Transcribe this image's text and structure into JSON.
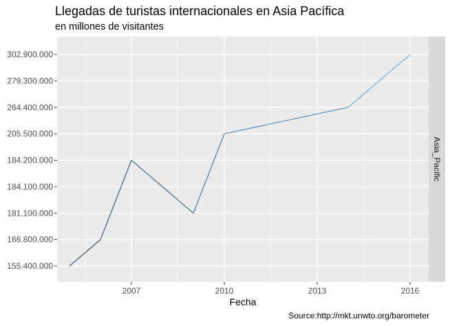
{
  "colors": {
    "panel_bg": "#ebebeb",
    "grid_major": "#ffffff",
    "strip_bg": "#d9d9d9",
    "line_start": "#132b43",
    "line_end": "#56b1f7",
    "axis_text": "#4d4d4d"
  },
  "chart_data": {
    "type": "line",
    "title": "Llegadas de turistas internacionales en Asia Pacífica",
    "subtitle": "en millones de visitantes",
    "caption": "Source:http://mkt.unwto.org/barometer",
    "xlabel": "Fecha",
    "ylabel": "",
    "facet_label": "Asia_Pacific",
    "x_ticks": [
      "2007",
      "2010",
      "2013",
      "2016"
    ],
    "x_tick_values": [
      2007,
      2010,
      2013,
      2016
    ],
    "xlim": [
      2004.6,
      2016.6
    ],
    "y_categories": [
      "155.400.000",
      "166.800.000",
      "181.100.000",
      "184.100.000",
      "184.200.000",
      "205.500.000",
      "264.400.000",
      "279.300.000",
      "302.900.000"
    ],
    "series": [
      {
        "x": [
          2005,
          2006,
          2007,
          2009,
          2010,
          2014,
          2016
        ],
        "y": [
          "155.400.000",
          "166.800.000",
          "184.200.000",
          "181.100.000",
          "205.500.000",
          "264.400.000",
          "302.900.000"
        ]
      }
    ],
    "grid": true,
    "color_gradient_along_x": true
  }
}
